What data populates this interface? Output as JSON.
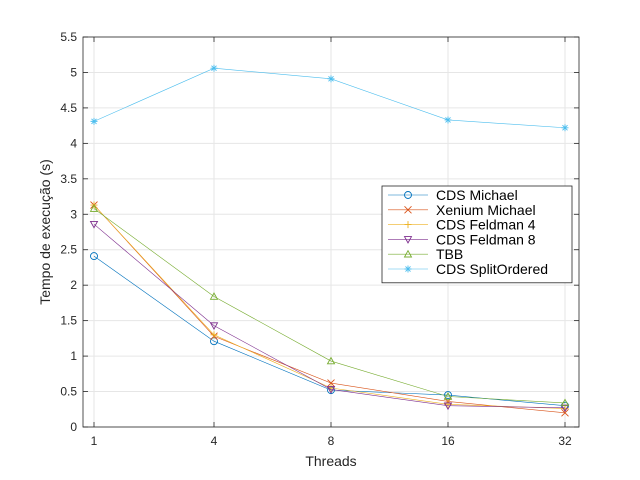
{
  "chart_data": {
    "type": "line",
    "xlabel": "Threads",
    "ylabel": "Tempo de execução (s)",
    "x": [
      1,
      4,
      8,
      16,
      32
    ],
    "x_tick_labels": [
      "1",
      "4",
      "8",
      "16",
      "32"
    ],
    "ylim": [
      0,
      5.5
    ],
    "y_ticks": [
      0,
      0.5,
      1,
      1.5,
      2,
      2.5,
      3,
      3.5,
      4,
      4.5,
      5,
      5.5
    ],
    "y_tick_labels": [
      "0",
      "0.5",
      "1",
      "1.5",
      "2",
      "2.5",
      "3",
      "3.5",
      "4",
      "4.5",
      "5",
      "5.5"
    ],
    "grid": true,
    "legend_position": "center-right",
    "series": [
      {
        "name": "CDS Michael",
        "values": [
          2.41,
          1.21,
          0.52,
          0.45,
          0.3
        ],
        "color": "#0072bd",
        "marker": "circle"
      },
      {
        "name": "Xenium Michael",
        "values": [
          3.13,
          1.28,
          0.62,
          0.36,
          0.2
        ],
        "color": "#d95319",
        "marker": "x"
      },
      {
        "name": "CDS Feldman 4",
        "values": [
          3.13,
          1.3,
          0.55,
          0.32,
          0.26
        ],
        "color": "#edb120",
        "marker": "plus"
      },
      {
        "name": "CDS Feldman 8",
        "values": [
          2.86,
          1.43,
          0.53,
          0.3,
          0.27
        ],
        "color": "#7e2f8e",
        "marker": "triangle-down"
      },
      {
        "name": "TBB",
        "values": [
          3.08,
          1.84,
          0.93,
          0.43,
          0.34
        ],
        "color": "#77ac30",
        "marker": "triangle-up"
      },
      {
        "name": "CDS SplitOrdered",
        "values": [
          4.31,
          5.06,
          4.91,
          4.33,
          4.22
        ],
        "color": "#4dbeee",
        "marker": "asterisk"
      }
    ]
  }
}
